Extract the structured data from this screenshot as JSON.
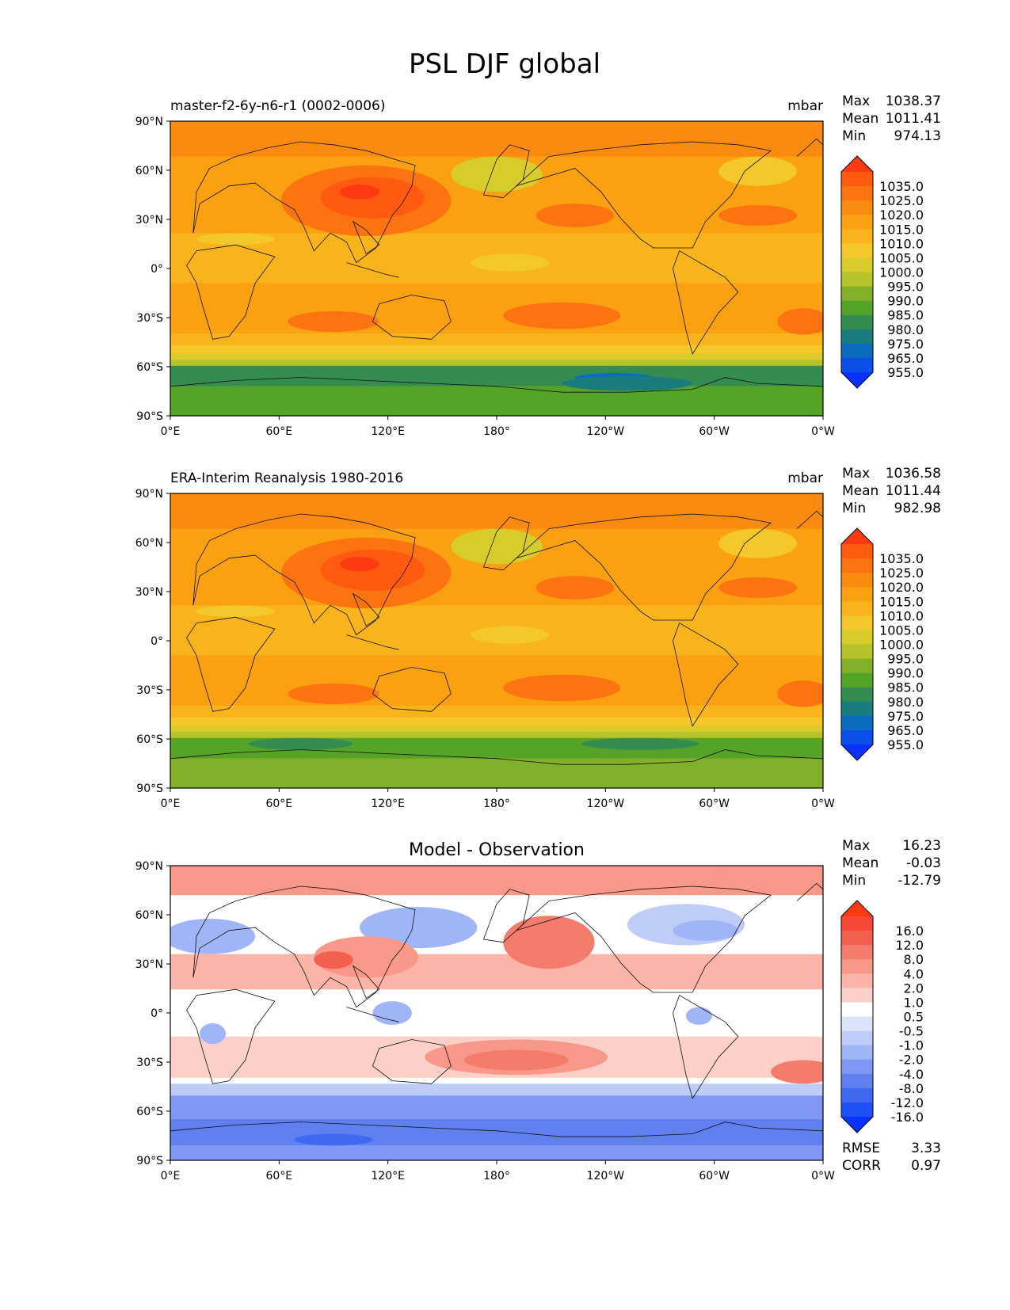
{
  "figure": {
    "title": "PSL DJF global"
  },
  "axes": {
    "lat_ticks": [
      "90°N",
      "60°N",
      "30°N",
      "0°",
      "30°S",
      "60°S",
      "90°S"
    ],
    "lon_ticks": [
      "0°E",
      "60°E",
      "120°E",
      "180°",
      "120°W",
      "60°W",
      "0°W"
    ]
  },
  "panels": [
    {
      "title_left": "master-f2-6y-n6-r1 (0002-0006)",
      "title_center": "",
      "units": "mbar",
      "stats": [
        {
          "label": "Max",
          "value": "1038.37"
        },
        {
          "label": "Mean",
          "value": "1011.41"
        },
        {
          "label": "Min",
          "value": "974.13"
        }
      ],
      "colorbar": {
        "labels": [
          "1035.0",
          "1025.0",
          "1020.0",
          "1015.0",
          "1010.0",
          "1005.0",
          "1000.0",
          "995.0",
          "990.0",
          "985.0",
          "980.0",
          "975.0",
          "965.0",
          "955.0"
        ],
        "colors": [
          "#ff3a10",
          "#ff5a10",
          "#fb7410",
          "#fb8b10",
          "#fba010",
          "#f8b41a",
          "#f4c82a",
          "#d8cc2c",
          "#b4c42a",
          "#82b028",
          "#55a428",
          "#358c50",
          "#1a7c7c",
          "#0c6cc0",
          "#0a50e8",
          "#0a32ff"
        ]
      },
      "footer": []
    },
    {
      "title_left": "ERA-Interim Reanalysis 1980-2016",
      "title_center": "",
      "units": "mbar",
      "stats": [
        {
          "label": "Max",
          "value": "1036.58"
        },
        {
          "label": "Mean",
          "value": "1011.44"
        },
        {
          "label": "Min",
          "value": "982.98"
        }
      ],
      "colorbar": {
        "labels": [
          "1035.0",
          "1025.0",
          "1020.0",
          "1015.0",
          "1010.0",
          "1005.0",
          "1000.0",
          "995.0",
          "990.0",
          "985.0",
          "980.0",
          "975.0",
          "965.0",
          "955.0"
        ],
        "colors": [
          "#ff3a10",
          "#ff5a10",
          "#fb7410",
          "#fb8b10",
          "#fba010",
          "#f8b41a",
          "#f4c82a",
          "#d8cc2c",
          "#b4c42a",
          "#82b028",
          "#55a428",
          "#358c50",
          "#1a7c7c",
          "#0c6cc0",
          "#0a50e8",
          "#0a32ff"
        ]
      },
      "footer": []
    },
    {
      "title_left": "",
      "title_center": "Model - Observation",
      "units": "",
      "stats": [
        {
          "label": "Max",
          "value": "16.23"
        },
        {
          "label": "Mean",
          "value": "-0.03"
        },
        {
          "label": "Min",
          "value": "-12.79"
        }
      ],
      "colorbar": {
        "labels": [
          "16.0",
          "12.0",
          "8.0",
          "4.0",
          "2.0",
          "1.0",
          "0.5",
          "-0.5",
          "-1.0",
          "-2.0",
          "-4.0",
          "-8.0",
          "-12.0",
          "-16.0"
        ],
        "colors": [
          "#ff3a10",
          "#f84838",
          "#f46050",
          "#f47c6c",
          "#f89888",
          "#fcb4a8",
          "#fcd0c8",
          "#ffffff",
          "#dce4fc",
          "#c0ccf8",
          "#a0b4f8",
          "#8098f4",
          "#6080f0",
          "#4068f0",
          "#2050f8",
          "#0a32ff"
        ]
      },
      "footer": [
        {
          "label": "RMSE",
          "value": "3.33"
        },
        {
          "label": "CORR",
          "value": "0.97"
        }
      ]
    }
  ]
}
